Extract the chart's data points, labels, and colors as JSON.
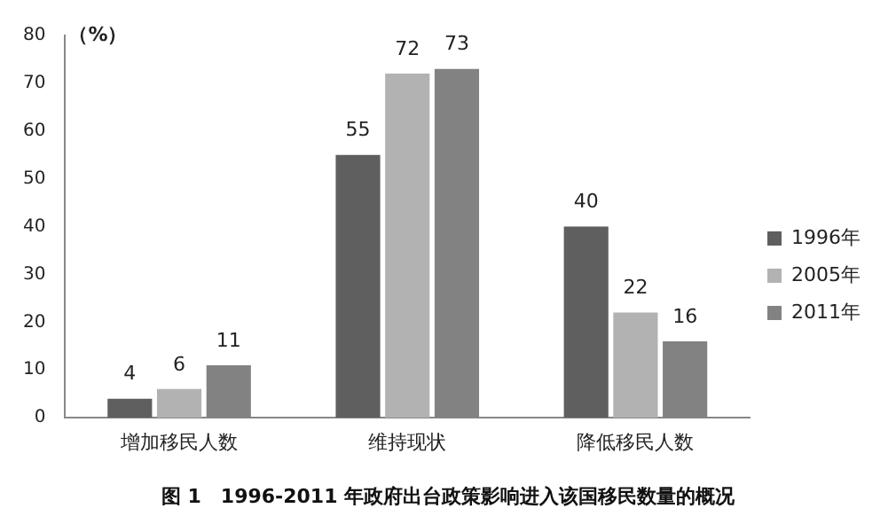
{
  "chart_data": {
    "type": "bar",
    "title": "图 1　1996-2011 年政府出台政策影响进入该国移民数量的概况",
    "ylabel": "（%）",
    "categories": [
      "增加移民人数",
      "维持现状",
      "降低移民人数"
    ],
    "series": [
      {
        "name": "1996年",
        "color": "#5f5f5f",
        "values": [
          4,
          55,
          40
        ]
      },
      {
        "name": "2005年",
        "color": "#b2b2b2",
        "values": [
          6,
          72,
          22
        ]
      },
      {
        "name": "2011年",
        "color": "#828282",
        "values": [
          11,
          73,
          16
        ]
      }
    ],
    "ylim": [
      0,
      80
    ],
    "yticks": [
      0,
      10,
      20,
      30,
      40,
      50,
      60,
      70,
      80
    ],
    "grid": false,
    "legend": "right",
    "data_labels": true
  }
}
